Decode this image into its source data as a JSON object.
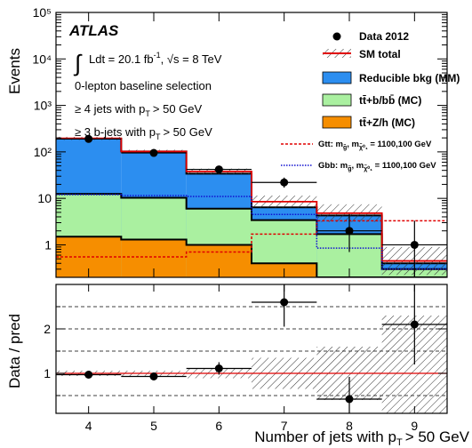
{
  "chart_data": {
    "type": "bar",
    "experiment": "ATLAS",
    "lumi_prefix": "Ldt = 20.1 fb",
    "lumi_exp": "-1",
    "energy_text": "s = 8 TeV",
    "selection_lines": [
      "0-lepton baseline selection",
      "≥ 4 jets with p",
      "≥ 3 b-jets with p"
    ],
    "selection_suffix": "> 50 GeV",
    "selection_subscript": "T",
    "xlabel": "Number of jets with p",
    "xlabel_sub": "T",
    "xlabel_suffix": "> 50 GeV",
    "ylabel": "Events",
    "ratio_ylabel": "Data / pred",
    "yscale": "log",
    "ylim": [
      0.2,
      100000
    ],
    "ratio_ylim": [
      0.1,
      3.0
    ],
    "x_bins": [
      [
        3.5,
        4.5
      ],
      [
        4.5,
        5.5
      ],
      [
        5.5,
        6.5
      ],
      [
        6.5,
        7.5
      ],
      [
        7.5,
        8.5
      ],
      [
        8.5,
        9.5
      ]
    ],
    "x_ticks": [
      "4",
      "5",
      "6",
      "7",
      "8",
      "9"
    ],
    "y_ticks": [
      "1",
      "10",
      "10²",
      "10³",
      "10⁴",
      "10⁵"
    ],
    "ratio_ticks": [
      "1",
      "2"
    ],
    "stack": [
      {
        "name": "tt̄+Z/h (MC)",
        "color": "#f68e00",
        "values": [
          1.5,
          1.3,
          1.0,
          0.4,
          0.2,
          0.2
        ]
      },
      {
        "name": "tt̄+b/bb̄ (MC)",
        "color": "#aaf0a0",
        "values": [
          11,
          9,
          5,
          3.0,
          1.5,
          0.1
        ]
      },
      {
        "name": "Reducible bkg (MM)",
        "color": "#2c8ef0",
        "values": [
          180,
          92,
          28,
          3.0,
          2.6,
          0.1
        ]
      }
    ],
    "sm_total": {
      "name": "SM total",
      "color": "#e00000",
      "values": [
        195,
        102,
        38,
        8.5,
        4.8,
        0.45
      ]
    },
    "data": {
      "name": "Data 2012",
      "x": [
        4,
        5,
        6,
        7,
        8,
        9
      ],
      "values": [
        190,
        95,
        42,
        22,
        2,
        1
      ],
      "err_low": [
        14,
        10,
        6,
        5,
        1.3,
        0.8
      ],
      "err_high": [
        14,
        10,
        7,
        6,
        2.6,
        2.3
      ]
    },
    "signals": [
      {
        "name": "Gtt: m",
        "label_rest": ", m",
        "label_tail": " = 1100,100 GeV",
        "sub1": "g̃",
        "sub2": "χ̃⁰₁",
        "color": "#e00000",
        "style": "dashed",
        "values": [
          0.55,
          0.55,
          0.7,
          1.7,
          3.3,
          3.3
        ]
      },
      {
        "name": "Gbb: m",
        "label_rest": ", m",
        "label_tail": " = 1100,100 GeV",
        "sub1": "g̃",
        "sub2": "χ̃⁰₁",
        "color": "#1010d0",
        "style": "dotted",
        "values": [
          12,
          11.5,
          11,
          4.5,
          0.85,
          0.3
        ]
      }
    ],
    "ratio": {
      "x": [
        4,
        5,
        6,
        7,
        8,
        9
      ],
      "values": [
        0.97,
        0.93,
        1.11,
        2.6,
        0.42,
        2.1
      ],
      "err_low": [
        0.07,
        0.09,
        0.14,
        0.55,
        0.32,
        0.9
      ],
      "err_high": [
        0.07,
        0.09,
        0.14,
        0.55,
        0.5,
        1.1
      ],
      "band_half": [
        0.06,
        0.06,
        0.11,
        0.35,
        0.6,
        1.3
      ]
    }
  }
}
